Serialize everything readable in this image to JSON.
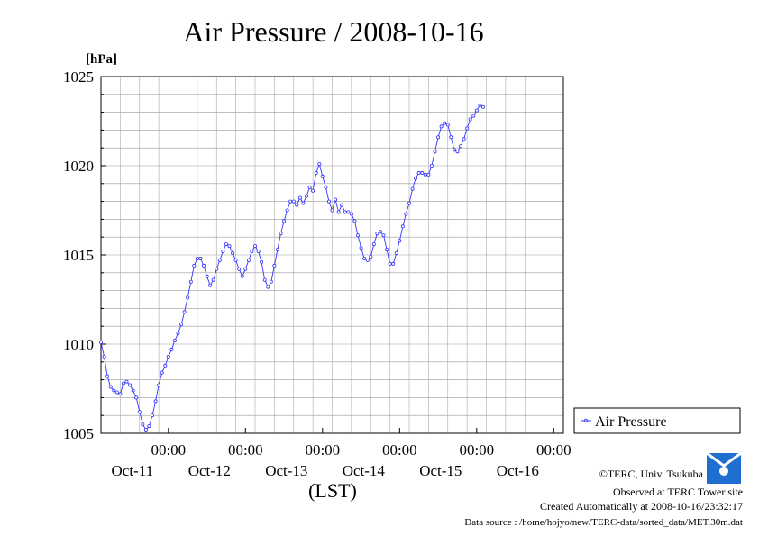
{
  "chart_data": {
    "type": "line",
    "title": "Air Pressure / 2008-10-16",
    "ylabel": "[hPa]",
    "xlabel": "(LST)",
    "ylim": [
      1005,
      1025
    ],
    "yticks": [
      "1005",
      "1010",
      "1015",
      "1020",
      "1025"
    ],
    "xlim_hours": [
      0,
      144
    ],
    "xticks": [
      {
        "time": "00:00",
        "date": "Oct-11"
      },
      {
        "time": "00:00",
        "date": "Oct-12"
      },
      {
        "time": "00:00",
        "date": "Oct-13"
      },
      {
        "time": "00:00",
        "date": "Oct-14"
      },
      {
        "time": "00:00",
        "date": "Oct-15"
      },
      {
        "time": "00:00",
        "date": "Oct-16"
      }
    ],
    "grid": true,
    "legend_position": "right",
    "series": [
      {
        "name": "Air Pressure",
        "color": "#3333ff",
        "points": [
          [
            0,
            1010.1
          ],
          [
            1,
            1009.3
          ],
          [
            2,
            1008.2
          ],
          [
            3,
            1007.6
          ],
          [
            4,
            1007.4
          ],
          [
            5,
            1007.3
          ],
          [
            6,
            1007.2
          ],
          [
            7,
            1007.8
          ],
          [
            8,
            1007.9
          ],
          [
            9,
            1007.7
          ],
          [
            10,
            1007.4
          ],
          [
            11,
            1007.0
          ],
          [
            12,
            1006.2
          ],
          [
            13,
            1005.5
          ],
          [
            14,
            1005.2
          ],
          [
            15,
            1005.4
          ],
          [
            16,
            1006.0
          ],
          [
            17,
            1006.8
          ],
          [
            18,
            1007.7
          ],
          [
            19,
            1008.4
          ],
          [
            20,
            1008.8
          ],
          [
            21,
            1009.3
          ],
          [
            22,
            1009.7
          ],
          [
            23,
            1010.2
          ],
          [
            24,
            1010.6
          ],
          [
            25,
            1011.1
          ],
          [
            26,
            1011.8
          ],
          [
            27,
            1012.6
          ],
          [
            28,
            1013.5
          ],
          [
            29,
            1014.4
          ],
          [
            30,
            1014.8
          ],
          [
            31,
            1014.8
          ],
          [
            32,
            1014.4
          ],
          [
            33,
            1013.8
          ],
          [
            34,
            1013.3
          ],
          [
            35,
            1013.6
          ],
          [
            36,
            1014.2
          ],
          [
            37,
            1014.7
          ],
          [
            38,
            1015.2
          ],
          [
            39,
            1015.6
          ],
          [
            40,
            1015.5
          ],
          [
            41,
            1015.1
          ],
          [
            42,
            1014.7
          ],
          [
            43,
            1014.2
          ],
          [
            44,
            1013.8
          ],
          [
            45,
            1014.2
          ],
          [
            46,
            1014.7
          ],
          [
            47,
            1015.2
          ],
          [
            48,
            1015.5
          ],
          [
            49,
            1015.2
          ],
          [
            50,
            1014.6
          ],
          [
            51,
            1013.6
          ],
          [
            52,
            1013.2
          ],
          [
            53,
            1013.5
          ],
          [
            54,
            1014.4
          ],
          [
            55,
            1015.3
          ],
          [
            56,
            1016.2
          ],
          [
            57,
            1016.9
          ],
          [
            58,
            1017.5
          ],
          [
            59,
            1018.0
          ],
          [
            60,
            1018.0
          ],
          [
            61,
            1017.8
          ],
          [
            62,
            1018.2
          ],
          [
            63,
            1017.9
          ],
          [
            64,
            1018.3
          ],
          [
            65,
            1018.8
          ],
          [
            66,
            1018.6
          ],
          [
            67,
            1019.6
          ],
          [
            68,
            1020.1
          ],
          [
            69,
            1019.4
          ],
          [
            70,
            1018.8
          ],
          [
            71,
            1018.0
          ],
          [
            72,
            1017.5
          ],
          [
            73,
            1018.1
          ],
          [
            74,
            1017.4
          ],
          [
            75,
            1017.8
          ],
          [
            76,
            1017.4
          ],
          [
            77,
            1017.4
          ],
          [
            78,
            1017.3
          ],
          [
            79,
            1016.9
          ],
          [
            80,
            1016.1
          ],
          [
            81,
            1015.4
          ],
          [
            82,
            1014.8
          ],
          [
            83,
            1014.7
          ],
          [
            84,
            1014.9
          ],
          [
            85,
            1015.6
          ],
          [
            86,
            1016.2
          ],
          [
            87,
            1016.3
          ],
          [
            88,
            1016.1
          ],
          [
            89,
            1015.3
          ],
          [
            90,
            1014.5
          ],
          [
            91,
            1014.5
          ],
          [
            92,
            1015.1
          ],
          [
            93,
            1015.8
          ],
          [
            94,
            1016.6
          ],
          [
            95,
            1017.3
          ],
          [
            96,
            1017.9
          ],
          [
            97,
            1018.7
          ],
          [
            98,
            1019.3
          ],
          [
            99,
            1019.6
          ],
          [
            100,
            1019.6
          ],
          [
            101,
            1019.5
          ],
          [
            102,
            1019.5
          ],
          [
            103,
            1020.0
          ],
          [
            104,
            1020.8
          ],
          [
            105,
            1021.6
          ],
          [
            106,
            1022.2
          ],
          [
            107,
            1022.4
          ],
          [
            108,
            1022.3
          ],
          [
            109,
            1021.6
          ],
          [
            110,
            1020.9
          ],
          [
            111,
            1020.8
          ],
          [
            112,
            1021.1
          ],
          [
            113,
            1021.5
          ],
          [
            114,
            1022.1
          ],
          [
            115,
            1022.6
          ],
          [
            116,
            1022.8
          ],
          [
            117,
            1023.1
          ],
          [
            118,
            1023.4
          ],
          [
            119,
            1023.3
          ]
        ]
      }
    ]
  },
  "credits": {
    "copyright": "©TERC, Univ. Tsukuba",
    "observed": "Observed at TERC Tower site",
    "created": "Created Automatically at 2008-10-16/23:32:17",
    "source": "Data source : /home/hojyo/new/TERC-data/sorted_data/MET.30m.dat",
    "logo_text": "TERC"
  }
}
